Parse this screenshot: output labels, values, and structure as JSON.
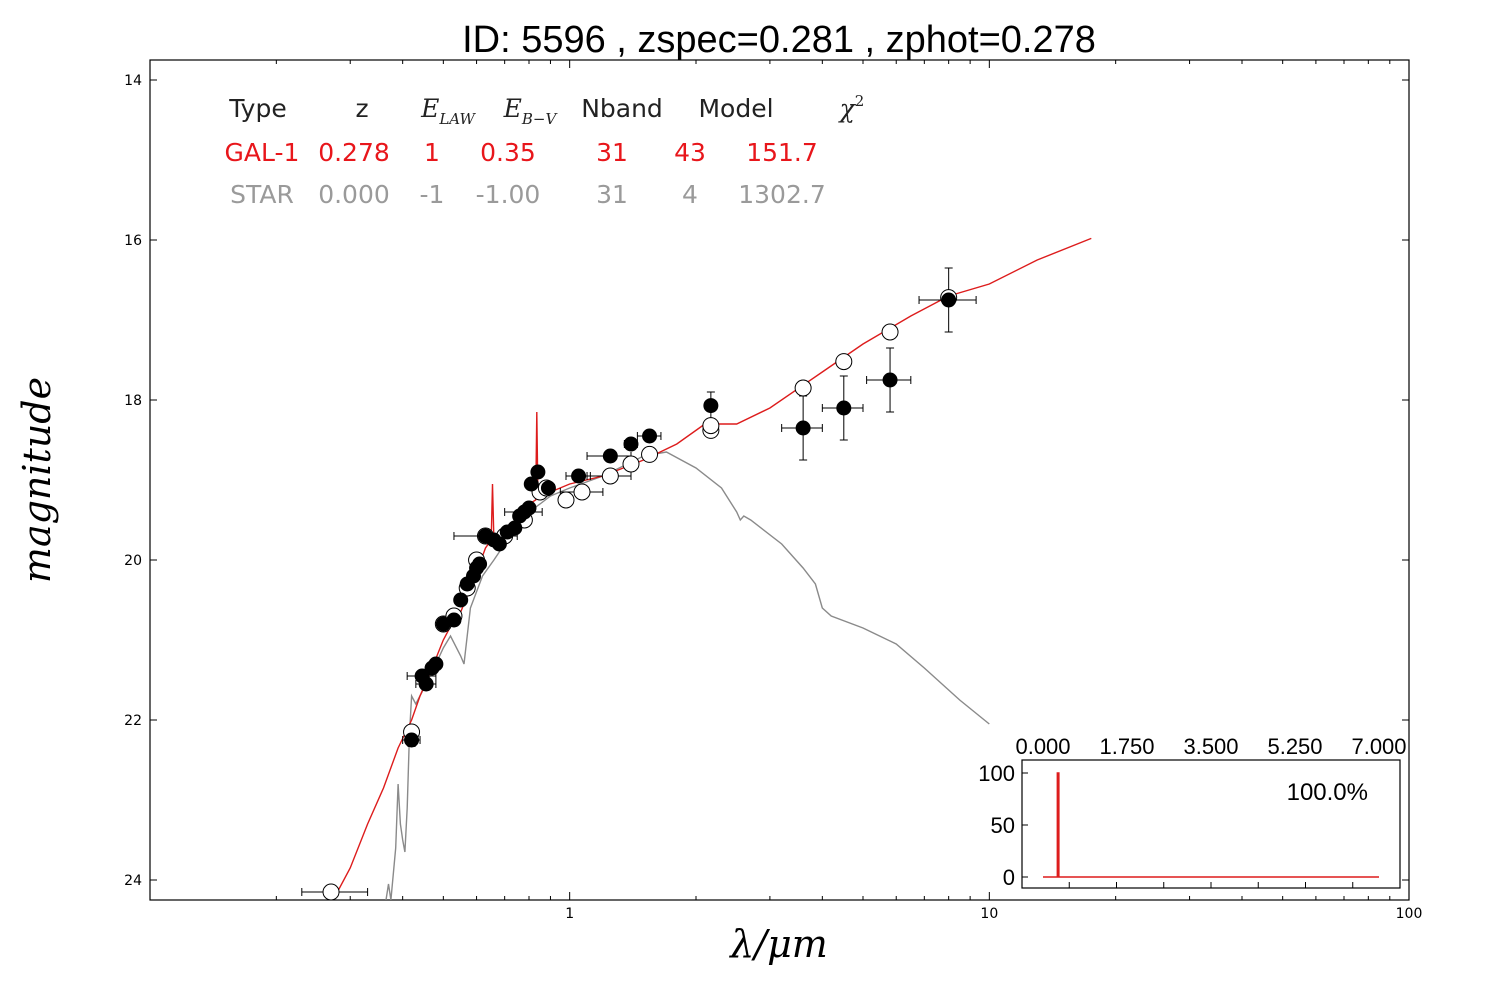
{
  "chart_data": [
    {
      "type": "scatter",
      "title": "ID:  5596  , zspec=0.281 , zphot=0.278",
      "xlabel": "λ/μm",
      "ylabel": "magnitude",
      "x_scale": "log",
      "xlim": [
        0.1,
        100
      ],
      "ylim": [
        24.25,
        13.75
      ],
      "y_inverted": true,
      "x_ticks": [
        "1",
        "10",
        "100"
      ],
      "y_ticks": [
        "14",
        "16",
        "18",
        "20",
        "22",
        "24"
      ],
      "fit_table": {
        "headers": [
          "Type",
          "z",
          "E_LAW",
          "E_B−V",
          "Nband",
          "Model",
          "χ²"
        ],
        "header_math": {
          "E_LAW": [
            "E",
            "LAW"
          ],
          "E_B−V": [
            "E",
            "B−V"
          ],
          "χ²": [
            "χ",
            "2"
          ]
        },
        "rows": [
          {
            "cells": [
              "GAL-1",
              "0.278",
              "1",
              "0.35",
              "31",
              "43",
              "151.7"
            ],
            "color": "#e8161b"
          },
          {
            "cells": [
              "STAR",
              "0.000",
              "-1",
              "-1.00",
              "31",
              "4",
              "1302.7"
            ],
            "color": "#9a9a9a"
          }
        ]
      },
      "series": [
        {
          "name": "GAL-1",
          "kind": "model-line",
          "color": "#dd1c1c",
          "points": [
            [
              0.27,
              24.3
            ],
            [
              0.3,
              23.85
            ],
            [
              0.33,
              23.3
            ],
            [
              0.36,
              22.85
            ],
            [
              0.39,
              22.35
            ],
            [
              0.42,
              22.0
            ],
            [
              0.44,
              21.7
            ],
            [
              0.47,
              21.35
            ],
            [
              0.5,
              21.0
            ],
            [
              0.53,
              20.75
            ],
            [
              0.55,
              20.65
            ],
            [
              0.58,
              20.35
            ],
            [
              0.6,
              20.15
            ],
            [
              0.63,
              19.85
            ],
            [
              0.65,
              19.75
            ],
            [
              0.655,
              19.05
            ],
            [
              0.66,
              19.75
            ],
            [
              0.7,
              19.7
            ],
            [
              0.75,
              19.5
            ],
            [
              0.8,
              19.3
            ],
            [
              0.83,
              19.25
            ],
            [
              0.835,
              18.15
            ],
            [
              0.84,
              19.2
            ],
            [
              0.9,
              19.15
            ],
            [
              1.0,
              19.05
            ],
            [
              1.2,
              18.95
            ],
            [
              1.5,
              18.75
            ],
            [
              1.8,
              18.55
            ],
            [
              2.1,
              18.3
            ],
            [
              2.5,
              18.3
            ],
            [
              3.0,
              18.1
            ],
            [
              4.0,
              17.65
            ],
            [
              5.0,
              17.3
            ],
            [
              6.5,
              16.95
            ],
            [
              8.0,
              16.7
            ],
            [
              10.0,
              16.55
            ],
            [
              13.0,
              16.25
            ],
            [
              17.5,
              15.98
            ]
          ]
        },
        {
          "name": "STAR",
          "kind": "model-line",
          "color": "#8a8a8a",
          "points": [
            [
              0.365,
              24.25
            ],
            [
              0.37,
              24.05
            ],
            [
              0.375,
              24.25
            ],
            [
              0.385,
              23.6
            ],
            [
              0.39,
              22.8
            ],
            [
              0.395,
              23.3
            ],
            [
              0.4,
              23.5
            ],
            [
              0.405,
              23.65
            ],
            [
              0.41,
              23.1
            ],
            [
              0.415,
              22.2
            ],
            [
              0.42,
              21.7
            ],
            [
              0.43,
              21.8
            ],
            [
              0.45,
              21.6
            ],
            [
              0.48,
              21.3
            ],
            [
              0.5,
              21.1
            ],
            [
              0.52,
              20.95
            ],
            [
              0.55,
              21.2
            ],
            [
              0.56,
              21.3
            ],
            [
              0.58,
              20.6
            ],
            [
              0.62,
              20.2
            ],
            [
              0.66,
              20.0
            ],
            [
              0.7,
              19.8
            ],
            [
              0.75,
              19.55
            ],
            [
              0.8,
              19.4
            ],
            [
              0.85,
              19.3
            ],
            [
              0.9,
              19.2
            ],
            [
              1.0,
              19.1
            ],
            [
              1.2,
              18.95
            ],
            [
              1.5,
              18.7
            ],
            [
              1.7,
              18.65
            ],
            [
              2.0,
              18.85
            ],
            [
              2.3,
              19.1
            ],
            [
              2.5,
              19.4
            ],
            [
              2.55,
              19.5
            ],
            [
              2.6,
              19.45
            ],
            [
              2.7,
              19.5
            ],
            [
              3.2,
              19.8
            ],
            [
              3.6,
              20.1
            ],
            [
              3.85,
              20.3
            ],
            [
              4.0,
              20.6
            ],
            [
              4.2,
              20.7
            ],
            [
              5.0,
              20.85
            ],
            [
              6.0,
              21.05
            ],
            [
              7.0,
              21.35
            ],
            [
              8.5,
              21.75
            ],
            [
              10.0,
              22.05
            ]
          ]
        },
        {
          "name": "observed",
          "kind": "filled-points",
          "points": [
            {
              "x": 0.42,
              "y": 22.25,
              "xerr": [
                0.4,
                0.44
              ],
              "yerr": [
                22.17,
                22.33
              ]
            },
            {
              "x": 0.445,
              "y": 21.45,
              "xerr": [
                0.41,
                0.48
              ],
              "yerr": [
                21.4,
                21.5
              ]
            },
            {
              "x": 0.455,
              "y": 21.55,
              "xerr": [
                0.43,
                0.48
              ],
              "yerr": [
                21.5,
                21.6
              ]
            },
            {
              "x": 0.47,
              "y": 21.35,
              "xerr": [
                0.46,
                0.48
              ],
              "yerr": [
                21.3,
                21.4
              ]
            },
            {
              "x": 0.48,
              "y": 21.3,
              "xerr": [
                0.47,
                0.49
              ],
              "yerr": [
                21.25,
                21.35
              ]
            },
            {
              "x": 0.5,
              "y": 20.8,
              "xerr": [
                0.49,
                0.51
              ],
              "yerr": [
                20.75,
                20.85
              ]
            },
            {
              "x": 0.53,
              "y": 20.75,
              "xerr": [
                0.52,
                0.54
              ],
              "yerr": [
                20.7,
                20.8
              ]
            },
            {
              "x": 0.55,
              "y": 20.5,
              "xerr": [
                0.54,
                0.56
              ],
              "yerr": [
                20.45,
                20.55
              ]
            },
            {
              "x": 0.57,
              "y": 20.3,
              "xerr": [
                0.56,
                0.58
              ],
              "yerr": [
                20.25,
                20.35
              ]
            },
            {
              "x": 0.59,
              "y": 20.2,
              "xerr": [
                0.58,
                0.6
              ],
              "yerr": [
                20.15,
                20.25
              ]
            },
            {
              "x": 0.6,
              "y": 20.1,
              "xerr": [
                0.59,
                0.61
              ],
              "yerr": [
                20.05,
                20.15
              ]
            },
            {
              "x": 0.61,
              "y": 20.05,
              "xerr": [
                0.6,
                0.62
              ],
              "yerr": [
                20.0,
                20.1
              ]
            },
            {
              "x": 0.63,
              "y": 19.7,
              "xerr": [
                0.61,
                0.65
              ],
              "yerr": [
                19.65,
                19.75
              ]
            },
            {
              "x": 0.66,
              "y": 19.75,
              "xerr": [
                0.64,
                0.68
              ],
              "yerr": [
                19.7,
                19.8
              ]
            },
            {
              "x": 0.68,
              "y": 19.8,
              "xerr": [
                0.67,
                0.69
              ],
              "yerr": [
                19.75,
                19.85
              ]
            },
            {
              "x": 0.71,
              "y": 19.65,
              "xerr": [
                0.7,
                0.72
              ],
              "yerr": [
                19.6,
                19.7
              ]
            },
            {
              "x": 0.74,
              "y": 19.6,
              "xerr": [
                0.73,
                0.75
              ],
              "yerr": [
                19.55,
                19.65
              ]
            },
            {
              "x": 0.76,
              "y": 19.45,
              "xerr": [
                0.74,
                0.78
              ],
              "yerr": [
                19.4,
                19.5
              ]
            },
            {
              "x": 0.78,
              "y": 19.4,
              "xerr": [
                0.7,
                0.86
              ],
              "yerr": [
                19.35,
                19.45
              ]
            },
            {
              "x": 0.8,
              "y": 19.35,
              "xerr": [
                0.79,
                0.81
              ],
              "yerr": [
                19.3,
                19.4
              ]
            },
            {
              "x": 0.81,
              "y": 19.05,
              "xerr": [
                0.79,
                0.83
              ],
              "yerr": [
                19.0,
                19.1
              ]
            },
            {
              "x": 0.84,
              "y": 18.9,
              "xerr": [
                0.83,
                0.85
              ],
              "yerr": [
                18.85,
                18.95
              ]
            },
            {
              "x": 0.89,
              "y": 19.1,
              "xerr": [
                0.86,
                0.92
              ],
              "yerr": [
                19.05,
                19.15
              ]
            },
            {
              "x": 1.05,
              "y": 18.95,
              "xerr": [
                0.98,
                1.12
              ],
              "yerr": [
                18.9,
                19.0
              ]
            },
            {
              "x": 1.25,
              "y": 18.7,
              "xerr": [
                1.1,
                1.4
              ],
              "yerr": [
                18.65,
                18.75
              ]
            },
            {
              "x": 1.4,
              "y": 18.55,
              "xerr": [
                1.35,
                1.45
              ],
              "yerr": [
                18.5,
                18.6
              ]
            },
            {
              "x": 1.55,
              "y": 18.45,
              "xerr": [
                1.45,
                1.65
              ],
              "yerr": [
                18.38,
                18.52
              ]
            },
            {
              "x": 2.17,
              "y": 18.07,
              "xerr": [
                2.14,
                2.2
              ],
              "yerr": [
                17.9,
                18.25
              ]
            },
            {
              "x": 3.6,
              "y": 18.35,
              "xerr": [
                3.2,
                4.0
              ],
              "yerr": [
                17.95,
                18.75
              ]
            },
            {
              "x": 4.5,
              "y": 18.1,
              "xerr": [
                4.0,
                5.0
              ],
              "yerr": [
                17.7,
                18.5
              ]
            },
            {
              "x": 5.8,
              "y": 17.75,
              "xerr": [
                5.1,
                6.5
              ],
              "yerr": [
                17.35,
                18.15
              ]
            },
            {
              "x": 8.0,
              "y": 16.75,
              "xerr": [
                6.8,
                9.3
              ],
              "yerr": [
                16.35,
                17.15
              ]
            }
          ]
        },
        {
          "name": "model-fluxes",
          "kind": "open-points",
          "points": [
            {
              "x": 0.27,
              "y": 24.15,
              "xerr": [
                0.23,
                0.33
              ]
            },
            {
              "x": 0.42,
              "y": 22.15
            },
            {
              "x": 0.5,
              "y": 20.8
            },
            {
              "x": 0.53,
              "y": 20.7
            },
            {
              "x": 0.57,
              "y": 20.35
            },
            {
              "x": 0.6,
              "y": 20.0
            },
            {
              "x": 0.63,
              "y": 19.7,
              "xerr": [
                0.53,
                0.75
              ]
            },
            {
              "x": 0.7,
              "y": 19.7
            },
            {
              "x": 0.78,
              "y": 19.5
            },
            {
              "x": 0.85,
              "y": 19.15
            },
            {
              "x": 0.88,
              "y": 19.1
            },
            {
              "x": 0.98,
              "y": 19.25
            },
            {
              "x": 1.07,
              "y": 19.15,
              "xerr": [
                0.95,
                1.2
              ]
            },
            {
              "x": 1.25,
              "y": 18.95,
              "xerr": [
                1.1,
                1.4
              ]
            },
            {
              "x": 1.4,
              "y": 18.8
            },
            {
              "x": 1.55,
              "y": 18.68
            },
            {
              "x": 2.17,
              "y": 18.38
            },
            {
              "x": 2.17,
              "y": 18.32
            },
            {
              "x": 3.6,
              "y": 17.85
            },
            {
              "x": 4.5,
              "y": 17.52
            },
            {
              "x": 5.8,
              "y": 17.15
            },
            {
              "x": 8.0,
              "y": 16.72
            }
          ]
        }
      ]
    },
    {
      "type": "line",
      "title": "",
      "xlim": [
        0,
        7.0
      ],
      "ylim": [
        0,
        100
      ],
      "x_ticks": [
        "0.000",
        "1.750",
        "3.500",
        "5.250",
        "7.000"
      ],
      "y_ticks": [
        "0",
        "50",
        "100"
      ],
      "annotation": "100.0%",
      "color": "#dd1c1c",
      "series": [
        {
          "points": [
            [
              0.0,
              0
            ],
            [
              0.3,
              0
            ],
            [
              0.3,
              100
            ],
            [
              0.33,
              100
            ],
            [
              0.33,
              0
            ],
            [
              7.0,
              0
            ]
          ]
        }
      ]
    }
  ]
}
